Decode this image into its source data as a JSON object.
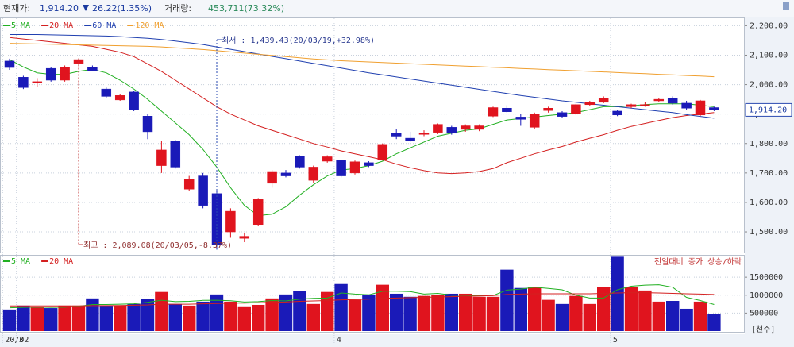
{
  "header": {
    "price_label": "현재가:",
    "price": "1,914.20",
    "change": "26.22(1.35%)",
    "volume_label": "거래량:",
    "volume": "453,711(73.32%)"
  },
  "chart_data": [
    {
      "type": "candlestick",
      "up_color": "#e0141e",
      "down_color": "#1a1ab8",
      "categories": [
        "20/02",
        "3",
        null,
        null,
        null,
        null,
        null,
        null,
        null,
        null,
        null,
        null,
        null,
        null,
        null,
        null,
        null,
        null,
        null,
        null,
        null,
        null,
        null,
        null,
        "4",
        null,
        null,
        null,
        null,
        null,
        null,
        null,
        null,
        null,
        null,
        null,
        null,
        null,
        null,
        null,
        null,
        null,
        null,
        null,
        "5",
        null,
        null,
        null,
        null,
        null,
        null,
        null
      ],
      "open": [
        2080,
        2025,
        2005,
        2055,
        2015,
        2072,
        2060,
        1985,
        1948,
        1975,
        1893,
        1725,
        1808,
        1645,
        1690,
        1630,
        1500,
        1478,
        1525,
        1665,
        1700,
        1757,
        1675,
        1740,
        1742,
        1700,
        1735,
        1745,
        1835,
        1818,
        1832,
        1838,
        1855,
        1848,
        1848,
        1893,
        1920,
        1890,
        1855,
        1912,
        1905,
        1900,
        1932,
        1940,
        1910,
        1925,
        1927,
        1945,
        1955,
        1937,
        1897,
        1922
      ],
      "high": [
        2088,
        2030,
        2022,
        2060,
        2065,
        2089.08,
        2065,
        1990,
        1968,
        1980,
        1900,
        1810,
        1812,
        1690,
        1700,
        1640,
        1580,
        1495,
        1615,
        1710,
        1710,
        1760,
        1725,
        1760,
        1745,
        1742,
        1740,
        1800,
        1850,
        1840,
        1845,
        1868,
        1860,
        1865,
        1865,
        1925,
        1930,
        1900,
        1905,
        1925,
        1910,
        1935,
        1945,
        1960,
        1915,
        1935,
        1940,
        1955,
        1960,
        1945,
        1948,
        1925
      ],
      "low": [
        2050,
        1985,
        1992,
        2010,
        2010,
        2068,
        2045,
        1955,
        1945,
        1910,
        1815,
        1700,
        1715,
        1640,
        1580,
        1439.43,
        1480,
        1465,
        1520,
        1650,
        1685,
        1715,
        1665,
        1735,
        1685,
        1695,
        1720,
        1742,
        1815,
        1805,
        1825,
        1832,
        1830,
        1840,
        1842,
        1890,
        1905,
        1860,
        1850,
        1905,
        1888,
        1898,
        1928,
        1937,
        1893,
        1920,
        1925,
        1940,
        1932,
        1915,
        1893,
        1910
      ],
      "close": [
        2058,
        1990,
        2010,
        2015,
        2060,
        2085,
        2048,
        1960,
        1963,
        1915,
        1840,
        1778,
        1720,
        1680,
        1590,
        1457,
        1570,
        1485,
        1610,
        1705,
        1690,
        1720,
        1720,
        1755,
        1690,
        1738,
        1725,
        1797,
        1825,
        1810,
        1835,
        1865,
        1835,
        1860,
        1860,
        1922,
        1908,
        1882,
        1900,
        1920,
        1892,
        1932,
        1940,
        1955,
        1897,
        1932,
        1932,
        1950,
        1937,
        1920,
        1945,
        1914.2
      ],
      "series": [
        {
          "name": "5 MA",
          "color": "#22b022",
          "values": [
            2085,
            2060,
            2040,
            2035,
            2035,
            2045,
            2052,
            2040,
            2015,
            1985,
            1950,
            1910,
            1870,
            1830,
            1780,
            1720,
            1650,
            1590,
            1555,
            1560,
            1585,
            1625,
            1660,
            1690,
            1710,
            1715,
            1725,
            1740,
            1765,
            1785,
            1805,
            1825,
            1835,
            1845,
            1850,
            1865,
            1880,
            1885,
            1890,
            1895,
            1900,
            1905,
            1915,
            1925,
            1925,
            1928,
            1932,
            1935,
            1935,
            1935,
            1930,
            1925
          ]
        },
        {
          "name": "20 MA",
          "color": "#d42020",
          "values": [
            2160,
            2155,
            2150,
            2145,
            2140,
            2135,
            2130,
            2120,
            2110,
            2095,
            2070,
            2045,
            2015,
            1985,
            1955,
            1925,
            1900,
            1880,
            1860,
            1845,
            1830,
            1815,
            1800,
            1788,
            1775,
            1765,
            1755,
            1745,
            1730,
            1718,
            1708,
            1700,
            1698,
            1700,
            1705,
            1715,
            1735,
            1750,
            1765,
            1778,
            1790,
            1805,
            1818,
            1830,
            1845,
            1858,
            1868,
            1878,
            1888,
            1895,
            1900,
            1905
          ]
        },
        {
          "name": "60 MA",
          "color": "#2040b0",
          "values": [
            2170,
            2170,
            2170,
            2169,
            2168,
            2167,
            2166,
            2165,
            2163,
            2160,
            2157,
            2153,
            2148,
            2142,
            2136,
            2128,
            2120,
            2112,
            2104,
            2096,
            2088,
            2080,
            2072,
            2064,
            2056,
            2048,
            2040,
            2033,
            2026,
            2019,
            2012,
            2005,
            1998,
            1991,
            1984,
            1977,
            1970,
            1963,
            1957,
            1951,
            1945,
            1940,
            1935,
            1930,
            1925,
            1920,
            1915,
            1910,
            1905,
            1898,
            1892,
            1886
          ]
        },
        {
          "name": "120 MA",
          "color": "#f0a030",
          "values": [
            2140,
            2139,
            2138,
            2137,
            2136,
            2135,
            2134,
            2133,
            2132,
            2131,
            2130,
            2128,
            2125,
            2122,
            2119,
            2115,
            2111,
            2107,
            2103,
            2099,
            2095,
            2091,
            2087,
            2084,
            2081,
            2079,
            2077,
            2075,
            2073,
            2071,
            2069,
            2067,
            2065,
            2063,
            2061,
            2059,
            2057,
            2055,
            2053,
            2051,
            2049,
            2047,
            2045,
            2043,
            2041,
            2039,
            2037,
            2035,
            2033,
            2031,
            2029,
            2027
          ]
        }
      ],
      "ylim": [
        1430,
        2228
      ],
      "yticks": [
        {
          "value": 1500,
          "label": "1,500.00"
        },
        {
          "value": 1600,
          "label": "1,600.00"
        },
        {
          "value": 1700,
          "label": "1,700.00"
        },
        {
          "value": 1800,
          "label": "1,800.00"
        },
        {
          "value": 1900,
          "label": "1,900.00"
        },
        {
          "value": 2000,
          "label": "2,000.00"
        },
        {
          "value": 2100,
          "label": "2,100.00"
        },
        {
          "value": 2200,
          "label": "2,200.00"
        }
      ],
      "last_price_label": "1,914.20",
      "annotations": [
        "최저 : 1,439.43(20/03/19,+32.98%)",
        "최고 : 2,089.08(20/03/05,-8.37%)"
      ],
      "grid": true
    },
    {
      "type": "bar",
      "title": "전일대비 증가 상승/하락",
      "unit_label": "[천주]",
      "values": [
        600000,
        710000,
        660000,
        640000,
        710000,
        710000,
        910000,
        710000,
        710000,
        755000,
        890000,
        1090000,
        755000,
        710000,
        820000,
        1020000,
        820000,
        690000,
        730000,
        910000,
        1020000,
        1110000,
        755000,
        1090000,
        1310000,
        870000,
        1020000,
        1290000,
        1040000,
        955000,
        980000,
        1000000,
        1040000,
        1040000,
        955000,
        955000,
        1710000,
        1200000,
        1220000,
        870000,
        755000,
        980000,
        755000,
        1220000,
        2070000,
        1220000,
        1130000,
        820000,
        840000,
        620000,
        820000,
        470000
      ],
      "series": [
        {
          "name": "5 MA",
          "color": "#22b022",
          "values": [
            650000,
            660000,
            670000,
            660000,
            665000,
            690000,
            740000,
            740000,
            750000,
            760000,
            800000,
            860000,
            820000,
            830000,
            855000,
            860000,
            845000,
            810000,
            820000,
            850000,
            840000,
            890000,
            910000,
            920000,
            1060000,
            1030000,
            1010000,
            1110000,
            1110000,
            1100000,
            1030000,
            1050000,
            1000000,
            1000000,
            990000,
            990000,
            1140000,
            1170000,
            1220000,
            1190000,
            1150000,
            1000000,
            920000,
            920000,
            1150000,
            1250000,
            1280000,
            1290000,
            1220000,
            940000,
            850000,
            740000
          ]
        },
        {
          "name": "20 MA",
          "color": "#d42020",
          "values": [
            700000,
            700000,
            700000,
            700000,
            700000,
            700000,
            710000,
            710000,
            715000,
            720000,
            730000,
            750000,
            750000,
            750000,
            760000,
            770000,
            780000,
            780000,
            790000,
            800000,
            810000,
            830000,
            840000,
            850000,
            870000,
            880000,
            890000,
            910000,
            920000,
            930000,
            940000,
            950000,
            960000,
            970000,
            980000,
            990000,
            1020000,
            1030000,
            1040000,
            1040000,
            1040000,
            1040000,
            1040000,
            1050000,
            1060000,
            1070000,
            1070000,
            1060000,
            1050000,
            1040000,
            1030000,
            1020000
          ]
        }
      ],
      "ylim": [
        0,
        2100000
      ],
      "yticks": [
        500000,
        1000000,
        1500000
      ],
      "grid": true
    }
  ]
}
